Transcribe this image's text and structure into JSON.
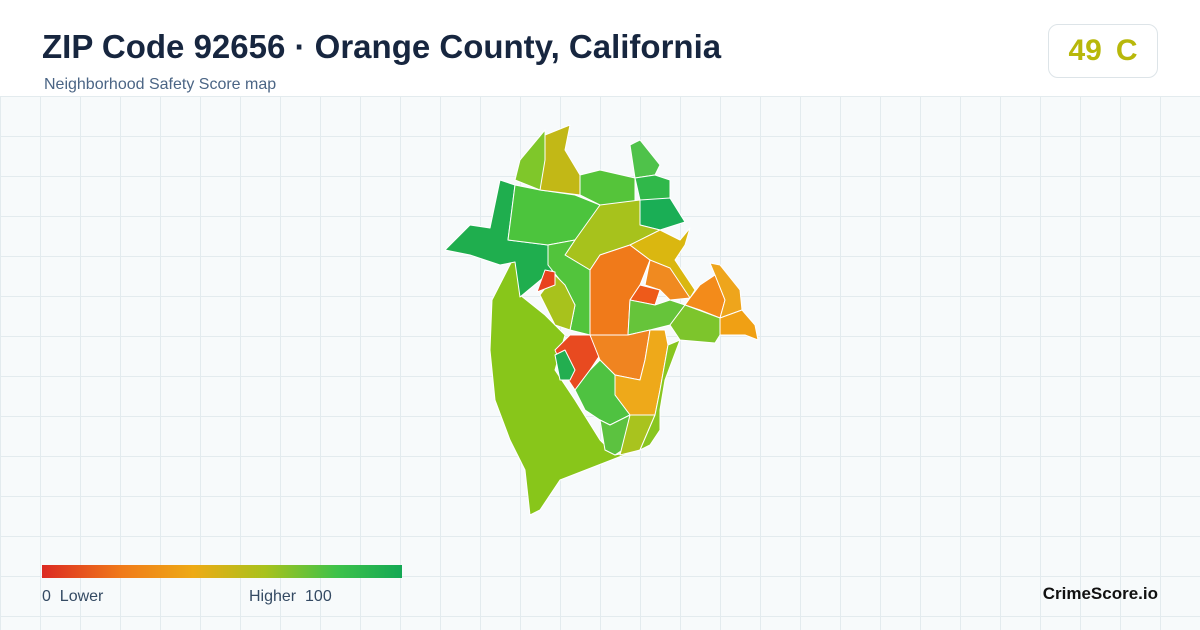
{
  "header": {
    "title": "ZIP Code 92656 · Orange County, California",
    "subtitle": "Neighborhood Safety Score map"
  },
  "score": {
    "value": "49",
    "grade": "C"
  },
  "legend": {
    "min": "0",
    "min_label": "Lower",
    "max_label": "Higher",
    "max": "100"
  },
  "footer": {
    "brand": "CrimeScore.io"
  }
}
